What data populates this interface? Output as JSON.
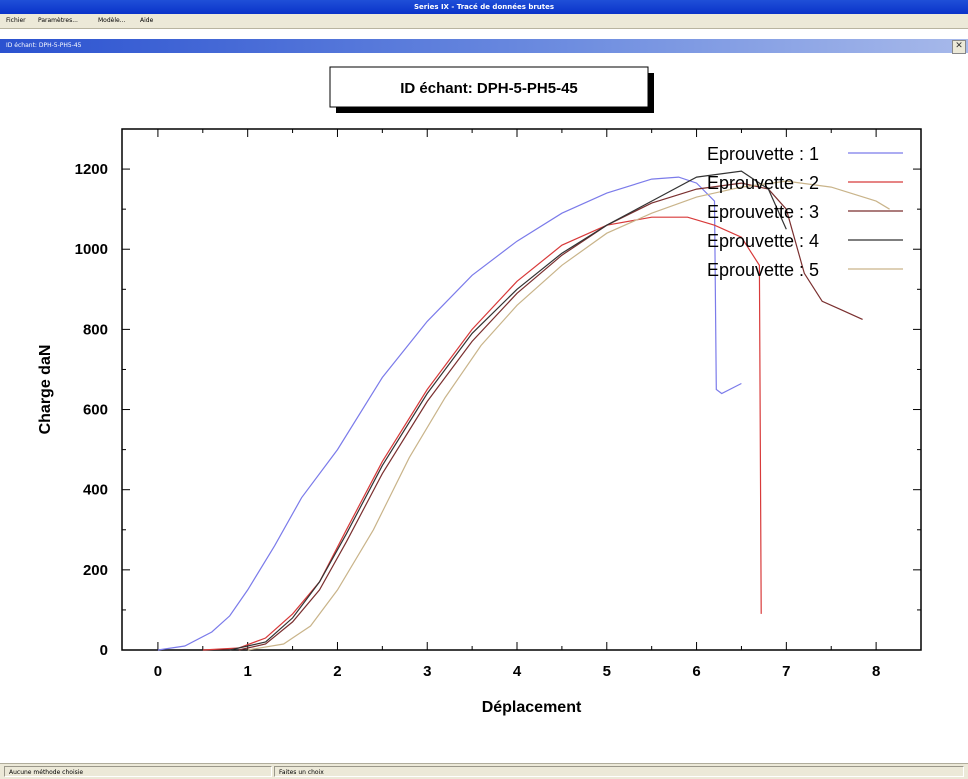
{
  "window": {
    "title": "Series IX - Tracé de données brutes"
  },
  "menu": [
    "Fichier",
    "Paramètres...",
    "Modèle...",
    "Aide"
  ],
  "child_window": {
    "title": "ID échant: DPH-5-PH5-45",
    "close_icon": "close-icon"
  },
  "status": {
    "left": "Aucune méthode choisie",
    "right": "Faites un choix"
  },
  "chart_data": {
    "type": "line",
    "title": "ID échant: DPH-5-PH5-45",
    "xlabel": "Déplacement",
    "ylabel": "Charge daN",
    "xlim": [
      -0.4,
      8.5
    ],
    "ylim": [
      0,
      1300
    ],
    "x_ticks": [
      "0",
      "1",
      "2",
      "3",
      "4",
      "5",
      "6",
      "7",
      "8"
    ],
    "y_ticks": [
      "0",
      "200",
      "400",
      "600",
      "800",
      "1000",
      "1200"
    ],
    "grid": false,
    "legend_position": "top-right",
    "series": [
      {
        "name": "Eprouvette : 1",
        "color": "#7b7bea",
        "points": [
          [
            0,
            0
          ],
          [
            0.3,
            10
          ],
          [
            0.6,
            45
          ],
          [
            0.8,
            85
          ],
          [
            1.0,
            150
          ],
          [
            1.3,
            260
          ],
          [
            1.6,
            380
          ],
          [
            2.0,
            500
          ],
          [
            2.5,
            680
          ],
          [
            3.0,
            820
          ],
          [
            3.5,
            935
          ],
          [
            4.0,
            1020
          ],
          [
            4.5,
            1090
          ],
          [
            5.0,
            1140
          ],
          [
            5.5,
            1175
          ],
          [
            5.8,
            1180
          ],
          [
            6.0,
            1165
          ],
          [
            6.2,
            1120
          ],
          [
            6.22,
            650
          ],
          [
            6.28,
            640
          ],
          [
            6.5,
            665
          ]
        ]
      },
      {
        "name": "Eprouvette : 2",
        "color": "#d83a3a",
        "points": [
          [
            0.5,
            0
          ],
          [
            0.9,
            5
          ],
          [
            1.2,
            30
          ],
          [
            1.5,
            90
          ],
          [
            1.8,
            170
          ],
          [
            2.1,
            300
          ],
          [
            2.5,
            470
          ],
          [
            3.0,
            650
          ],
          [
            3.5,
            800
          ],
          [
            4.0,
            920
          ],
          [
            4.5,
            1010
          ],
          [
            5.0,
            1060
          ],
          [
            5.5,
            1080
          ],
          [
            5.9,
            1080
          ],
          [
            6.2,
            1060
          ],
          [
            6.5,
            1030
          ],
          [
            6.7,
            960
          ],
          [
            6.72,
            90
          ]
        ]
      },
      {
        "name": "Eprouvette : 3",
        "color": "#7a2f2f",
        "points": [
          [
            0.9,
            0
          ],
          [
            1.2,
            15
          ],
          [
            1.5,
            70
          ],
          [
            1.8,
            150
          ],
          [
            2.1,
            270
          ],
          [
            2.5,
            440
          ],
          [
            3.0,
            620
          ],
          [
            3.5,
            770
          ],
          [
            4.0,
            890
          ],
          [
            4.5,
            985
          ],
          [
            5.0,
            1060
          ],
          [
            5.5,
            1115
          ],
          [
            6.0,
            1150
          ],
          [
            6.5,
            1165
          ],
          [
            6.8,
            1150
          ],
          [
            7.0,
            1100
          ],
          [
            7.2,
            940
          ],
          [
            7.4,
            870
          ],
          [
            7.6,
            850
          ],
          [
            7.85,
            825
          ]
        ]
      },
      {
        "name": "Eprouvette : 4",
        "color": "#333333",
        "points": [
          [
            0.8,
            0
          ],
          [
            1.2,
            20
          ],
          [
            1.5,
            80
          ],
          [
            1.8,
            170
          ],
          [
            2.1,
            290
          ],
          [
            2.5,
            460
          ],
          [
            3.0,
            640
          ],
          [
            3.5,
            790
          ],
          [
            4.0,
            900
          ],
          [
            4.5,
            990
          ],
          [
            5.0,
            1060
          ],
          [
            5.5,
            1120
          ],
          [
            6.0,
            1180
          ],
          [
            6.5,
            1195
          ],
          [
            6.8,
            1150
          ],
          [
            7.0,
            1050
          ]
        ]
      },
      {
        "name": "Eprouvette : 5",
        "color": "#c9b48a",
        "points": [
          [
            1.0,
            0
          ],
          [
            1.4,
            15
          ],
          [
            1.7,
            60
          ],
          [
            2.0,
            150
          ],
          [
            2.4,
            300
          ],
          [
            2.8,
            480
          ],
          [
            3.2,
            630
          ],
          [
            3.6,
            760
          ],
          [
            4.0,
            860
          ],
          [
            4.5,
            960
          ],
          [
            5.0,
            1040
          ],
          [
            5.5,
            1090
          ],
          [
            6.0,
            1130
          ],
          [
            6.5,
            1155
          ],
          [
            7.0,
            1170
          ],
          [
            7.5,
            1155
          ],
          [
            8.0,
            1120
          ],
          [
            8.15,
            1100
          ]
        ]
      }
    ]
  }
}
